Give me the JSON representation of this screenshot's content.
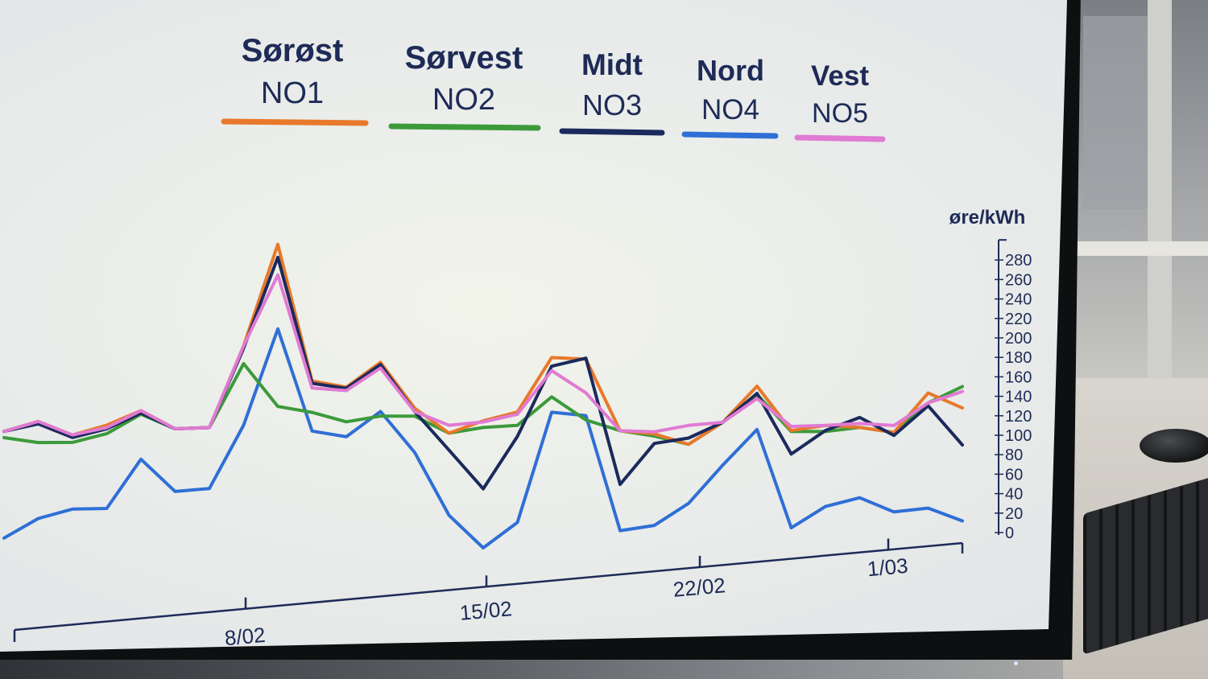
{
  "chart_data": {
    "type": "line",
    "title": "",
    "xlabel": "",
    "ylabel": "øre/kWh",
    "ylim": [
      0,
      280
    ],
    "yticks": [
      0,
      20,
      40,
      60,
      80,
      100,
      120,
      140,
      160,
      180,
      200,
      220,
      240,
      260,
      280
    ],
    "x_tick_labels": [
      "8/02",
      "15/02",
      "22/02",
      "1/03"
    ],
    "x": [
      "3/02",
      "4/02",
      "5/02",
      "6/02",
      "7/02",
      "8/02",
      "9/02",
      "10/02",
      "11/02",
      "12/02",
      "13/02",
      "14/02",
      "15/02",
      "16/02",
      "17/02",
      "18/02",
      "19/02",
      "20/02",
      "21/02",
      "22/02",
      "23/02",
      "24/02",
      "25/02",
      "26/02",
      "27/02",
      "28/02",
      "1/03",
      "2/03",
      "3/03"
    ],
    "grid": false,
    "legend_position": "top",
    "series": [
      {
        "name": "Sørøst",
        "code": "NO1",
        "color": "#e8792b",
        "values": [
          105,
          113,
          102,
          110,
          122,
          107,
          108,
          177,
          264,
          148,
          143,
          165,
          125,
          103,
          114,
          122,
          172,
          171,
          105,
          102,
          92,
          113,
          148,
          105,
          110,
          108,
          103,
          143,
          128
        ]
      },
      {
        "name": "Sørvest",
        "code": "NO2",
        "color": "#3c9a3b",
        "values": [
          100,
          96,
          96,
          103,
          119,
          107,
          108,
          162,
          126,
          121,
          113,
          118,
          118,
          103,
          108,
          110,
          136,
          115,
          105,
          100,
          92,
          113,
          140,
          104,
          104,
          108,
          103,
          133,
          150
        ]
      },
      {
        "name": "Midt",
        "code": "NO3",
        "color": "#1b2a5c",
        "values": [
          105,
          111,
          100,
          107,
          120,
          107,
          108,
          175,
          253,
          146,
          142,
          163,
          122,
          88,
          53,
          100,
          164,
          172,
          55,
          93,
          98,
          113,
          141,
          82,
          105,
          118,
          100,
          130,
          90
        ]
      },
      {
        "name": "Nord",
        "code": "NO4",
        "color": "#2f6fd6",
        "values": [
          20,
          35,
          42,
          42,
          82,
          55,
          57,
          110,
          192,
          105,
          100,
          122,
          86,
          30,
          0,
          22,
          122,
          119,
          12,
          16,
          36,
          72,
          106,
          10,
          30,
          38,
          23,
          26,
          12
        ]
      },
      {
        "name": "Vest",
        "code": "NO5",
        "color": "#e07ad2",
        "values": [
          105,
          113,
          102,
          108,
          122,
          107,
          108,
          177,
          238,
          142,
          140,
          160,
          122,
          110,
          113,
          120,
          160,
          140,
          105,
          104,
          110,
          113,
          136,
          109,
          110,
          112,
          110,
          133,
          145
        ]
      }
    ]
  }
}
